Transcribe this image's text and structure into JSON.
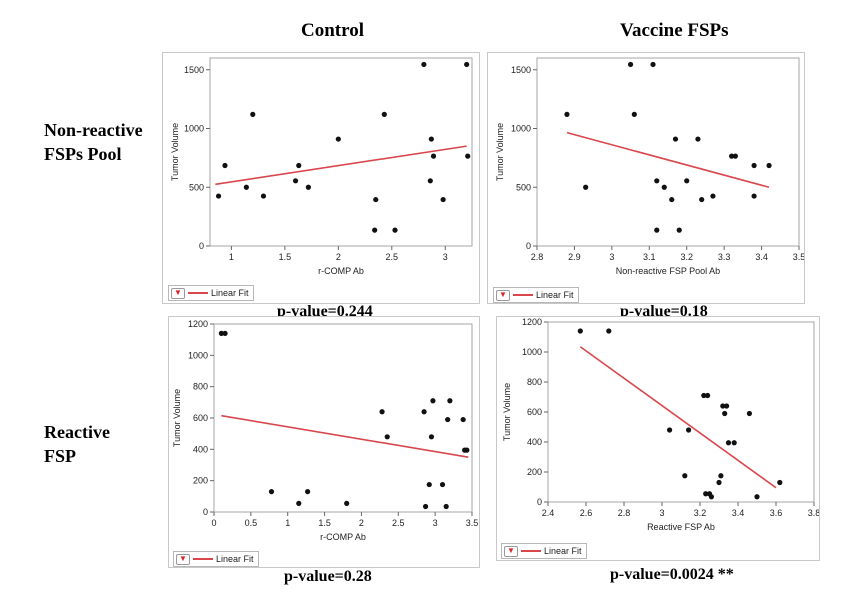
{
  "headers": {
    "col1": "Control",
    "col2": "Vaccine FSPs",
    "row1_line1": "Non-reactive",
    "row1_line2": "FSPs Pool",
    "row2_line1": "Reactive",
    "row2_line2": "FSP"
  },
  "colors": {
    "fit_line": "#d9474d",
    "points": "#111111",
    "frame": "#a6a6a6"
  },
  "legend_label": "Linear Fit",
  "legend_icon": "chevron-down-icon",
  "chart_data": [
    {
      "type": "scatter",
      "ylabel": "Tumor Volume",
      "xlabel": "r-COMP Ab",
      "xlim": [
        0.8,
        3.25
      ],
      "ylim": [
        0,
        1600
      ],
      "xticks": [
        1,
        1.5,
        2,
        2.5,
        3
      ],
      "yticks": [
        0,
        500,
        1000,
        1500
      ],
      "points": [
        [
          0.88,
          425
        ],
        [
          0.94,
          685
        ],
        [
          1.14,
          500
        ],
        [
          1.2,
          1120
        ],
        [
          1.3,
          425
        ],
        [
          1.6,
          555
        ],
        [
          1.63,
          685
        ],
        [
          1.72,
          500
        ],
        [
          2.0,
          910
        ],
        [
          2.34,
          135
        ],
        [
          2.35,
          395
        ],
        [
          2.43,
          1120
        ],
        [
          2.53,
          135
        ],
        [
          2.8,
          1545
        ],
        [
          2.86,
          555
        ],
        [
          2.87,
          910
        ],
        [
          2.89,
          765
        ],
        [
          2.98,
          395
        ],
        [
          3.2,
          1545
        ],
        [
          3.21,
          765
        ]
      ],
      "fit_line": [
        [
          0.85,
          525
        ],
        [
          3.2,
          850
        ]
      ],
      "legend": "Linear Fit",
      "annotation": "p-value=0.244"
    },
    {
      "type": "scatter",
      "ylabel": "Tumor Volume",
      "xlabel": "Non-reactive FSP Pool Ab",
      "xlim": [
        2.8,
        3.5
      ],
      "ylim": [
        0,
        1600
      ],
      "xticks": [
        2.8,
        2.9,
        3,
        3.1,
        3.2,
        3.3,
        3.4,
        3.5
      ],
      "yticks": [
        0,
        500,
        1000,
        1500
      ],
      "points": [
        [
          2.88,
          1120
        ],
        [
          2.93,
          500
        ],
        [
          3.05,
          1545
        ],
        [
          3.06,
          1120
        ],
        [
          3.11,
          1545
        ],
        [
          3.12,
          135
        ],
        [
          3.12,
          555
        ],
        [
          3.14,
          500
        ],
        [
          3.16,
          395
        ],
        [
          3.17,
          910
        ],
        [
          3.18,
          135
        ],
        [
          3.2,
          555
        ],
        [
          3.23,
          910
        ],
        [
          3.24,
          395
        ],
        [
          3.27,
          425
        ],
        [
          3.32,
          765
        ],
        [
          3.33,
          765
        ],
        [
          3.38,
          685
        ],
        [
          3.38,
          425
        ],
        [
          3.42,
          685
        ]
      ],
      "fit_line": [
        [
          2.88,
          965
        ],
        [
          3.42,
          500
        ]
      ],
      "legend": "Linear Fit",
      "annotation": "p-value=0.18"
    },
    {
      "type": "scatter",
      "ylabel": "Tumor Volume",
      "xlabel": "r-COMP Ab",
      "xlim": [
        0,
        3.5
      ],
      "ylim": [
        0,
        1200
      ],
      "xticks": [
        0,
        0.5,
        1,
        1.5,
        2,
        2.5,
        3,
        3.5
      ],
      "yticks": [
        0,
        200,
        400,
        600,
        800,
        1000,
        1200
      ],
      "points": [
        [
          0.1,
          1140
        ],
        [
          0.15,
          1140
        ],
        [
          0.78,
          130
        ],
        [
          1.15,
          55
        ],
        [
          1.27,
          130
        ],
        [
          1.8,
          55
        ],
        [
          2.28,
          640
        ],
        [
          2.35,
          480
        ],
        [
          2.85,
          640
        ],
        [
          2.87,
          35
        ],
        [
          2.92,
          175
        ],
        [
          2.95,
          480
        ],
        [
          2.97,
          710
        ],
        [
          3.1,
          175
        ],
        [
          3.15,
          35
        ],
        [
          3.17,
          590
        ],
        [
          3.2,
          710
        ],
        [
          3.38,
          590
        ],
        [
          3.4,
          395
        ],
        [
          3.43,
          395
        ]
      ],
      "fit_line": [
        [
          0.1,
          615
        ],
        [
          3.45,
          350
        ]
      ],
      "legend": "Linear Fit",
      "annotation": "p-value=0.28"
    },
    {
      "type": "scatter",
      "ylabel": "Tumor Volume",
      "xlabel": "Reactive FSP Ab",
      "xlim": [
        2.4,
        3.8
      ],
      "ylim": [
        0,
        1200
      ],
      "xticks": [
        2.4,
        2.6,
        2.8,
        3,
        3.2,
        3.4,
        3.6,
        3.8
      ],
      "yticks": [
        0,
        200,
        400,
        600,
        800,
        1000,
        1200
      ],
      "points": [
        [
          2.57,
          1140
        ],
        [
          2.72,
          1140
        ],
        [
          3.04,
          480
        ],
        [
          3.12,
          175
        ],
        [
          3.14,
          480
        ],
        [
          3.22,
          710
        ],
        [
          3.23,
          55
        ],
        [
          3.24,
          710
        ],
        [
          3.25,
          55
        ],
        [
          3.26,
          35
        ],
        [
          3.3,
          130
        ],
        [
          3.31,
          175
        ],
        [
          3.32,
          640
        ],
        [
          3.33,
          590
        ],
        [
          3.34,
          640
        ],
        [
          3.35,
          395
        ],
        [
          3.38,
          395
        ],
        [
          3.46,
          590
        ],
        [
          3.5,
          35
        ],
        [
          3.62,
          130
        ]
      ],
      "fit_line": [
        [
          2.57,
          1035
        ],
        [
          3.6,
          95
        ]
      ],
      "legend": "Linear Fit",
      "annotation": "p-value=0.0024 **"
    }
  ]
}
